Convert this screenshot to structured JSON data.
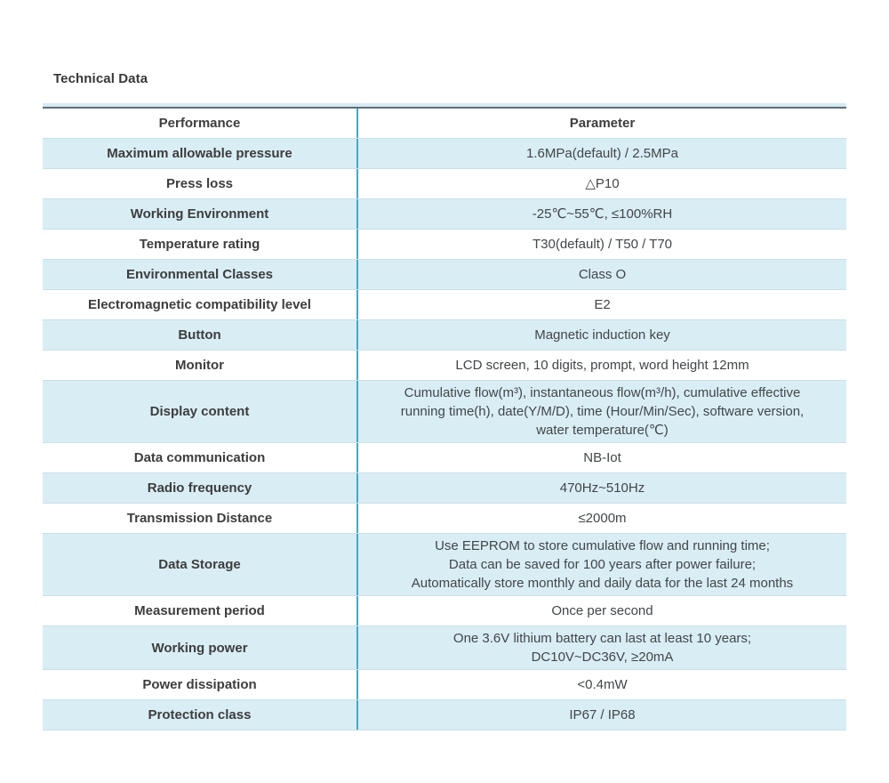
{
  "theme": {
    "accent_divider": "#45a7c9",
    "row_alt": "#d9edf5",
    "row_border": "#c8e0ea",
    "top_border": "#5d6d77",
    "top_border_halo": "#d7eaf3",
    "text": "#3d3d3d",
    "value_text": "#424649"
  },
  "page": {
    "title": "Technical Data"
  },
  "table": {
    "header": {
      "performance": "Performance",
      "parameter": "Parameter"
    },
    "rows": [
      {
        "performance": "Maximum allowable pressure",
        "parameter": "1.6MPa(default) / 2.5MPa"
      },
      {
        "performance": "Press loss",
        "parameter": "△P10"
      },
      {
        "performance": "Working Environment",
        "parameter": "-25℃~55℃, ≤100%RH"
      },
      {
        "performance": "Temperature rating",
        "parameter": "T30(default) / T50 / T70"
      },
      {
        "performance": "Environmental Classes",
        "parameter": "Class O"
      },
      {
        "performance": "Electromagnetic compatibility level",
        "parameter": "E2"
      },
      {
        "performance": "Button",
        "parameter": "Magnetic induction key"
      },
      {
        "performance": "Monitor",
        "parameter": "LCD screen, 10 digits, prompt, word height 12mm"
      },
      {
        "performance": "Display content",
        "parameter": "Cumulative flow(m³), instantaneous flow(m³/h), cumulative effective\nrunning time(h), date(Y/M/D), time (Hour/Min/Sec), software version,\nwater temperature(℃)"
      },
      {
        "performance": "Data communication",
        "parameter": "NB-Iot"
      },
      {
        "performance": "Radio frequency",
        "parameter": "470Hz~510Hz"
      },
      {
        "performance": "Transmission Distance",
        "parameter": "≤2000m"
      },
      {
        "performance": "Data Storage",
        "parameter": "Use EEPROM to store cumulative flow and running time;\nData can be saved for 100 years after power failure;\nAutomatically store monthly and daily data for the last 24 months"
      },
      {
        "performance": "Measurement period",
        "parameter": "Once per second"
      },
      {
        "performance": "Working power",
        "parameter": "One 3.6V lithium battery can last at least 10 years;\nDC10V~DC36V, ≥20mA"
      },
      {
        "performance": "Power dissipation",
        "parameter": "<0.4mW"
      },
      {
        "performance": "Protection class",
        "parameter": "IP67 / IP68"
      }
    ]
  }
}
